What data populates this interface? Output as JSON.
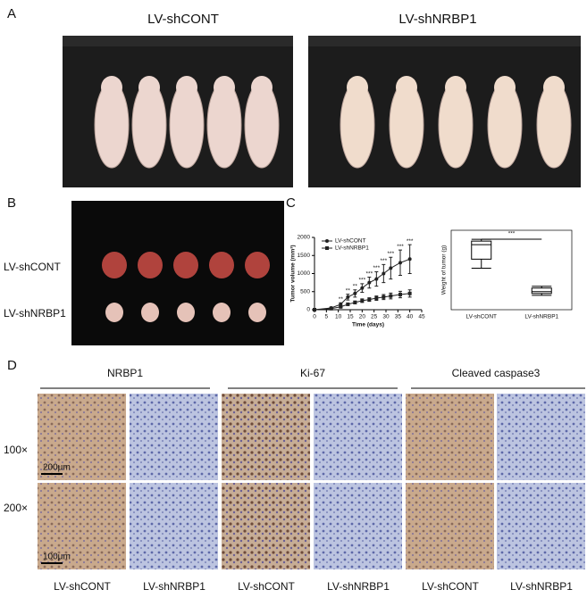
{
  "panel_labels": [
    "A",
    "B",
    "C",
    "D"
  ],
  "panel_a": {
    "titles": [
      "LV-shCONT",
      "LV-shNRBP1"
    ]
  },
  "panel_b": {
    "row_labels": [
      "LV-shCONT",
      "LV-shNRBP1"
    ]
  },
  "chart_data": [
    {
      "type": "line",
      "x_label": "Time (days)",
      "y_label": "Tumor volume (mm³)",
      "x": [
        0,
        7,
        11,
        14,
        17,
        20,
        23,
        26,
        29,
        32,
        36,
        40
      ],
      "xlim": [
        0,
        45
      ],
      "xticks": [
        0,
        5,
        10,
        15,
        20,
        25,
        30,
        35,
        40,
        45
      ],
      "ylim": [
        0,
        2000
      ],
      "yticks": [
        0,
        500,
        1000,
        1500,
        2000
      ],
      "series": [
        {
          "name": "LV-shCONT",
          "color": "#222222",
          "marker": "circle",
          "values": [
            0,
            50,
            150,
            350,
            450,
            600,
            750,
            850,
            1000,
            1150,
            1300,
            1400
          ],
          "errors": [
            0,
            20,
            40,
            80,
            100,
            120,
            150,
            200,
            250,
            300,
            350,
            400
          ]
        },
        {
          "name": "LV-shNRBP1",
          "color": "#222222",
          "marker": "square",
          "values": [
            0,
            30,
            80,
            150,
            200,
            250,
            280,
            320,
            350,
            380,
            420,
            450
          ],
          "errors": [
            0,
            10,
            20,
            30,
            40,
            50,
            50,
            60,
            70,
            80,
            90,
            100
          ]
        }
      ],
      "significance": {
        "x": [
          11,
          14,
          17,
          20,
          23,
          26,
          29,
          32,
          36,
          40
        ],
        "labels": [
          "**",
          "**",
          "**",
          "***",
          "***",
          "***",
          "***",
          "***",
          "***",
          "***"
        ]
      }
    },
    {
      "type": "box",
      "y_label": "Weight of tumor (g)",
      "categories": [
        "LV-shCONT",
        "LV-shNRBP1"
      ],
      "ylim": [
        0,
        2.2
      ],
      "boxes": [
        {
          "min": 1.15,
          "q1": 1.4,
          "median": 1.8,
          "q3": 1.9,
          "max": 1.95
        },
        {
          "min": 0.4,
          "q1": 0.45,
          "median": 0.5,
          "q3": 0.6,
          "max": 0.65
        }
      ],
      "significance": "***"
    }
  ],
  "panel_d": {
    "stains": [
      "NRBP1",
      "Ki-67",
      "Cleaved caspase3"
    ],
    "magnifications": [
      "100×",
      "200×"
    ],
    "scale_bars": [
      "200μm",
      "100μm"
    ],
    "groups": [
      "LV-shCONT",
      "LV-shNRBP1"
    ]
  }
}
